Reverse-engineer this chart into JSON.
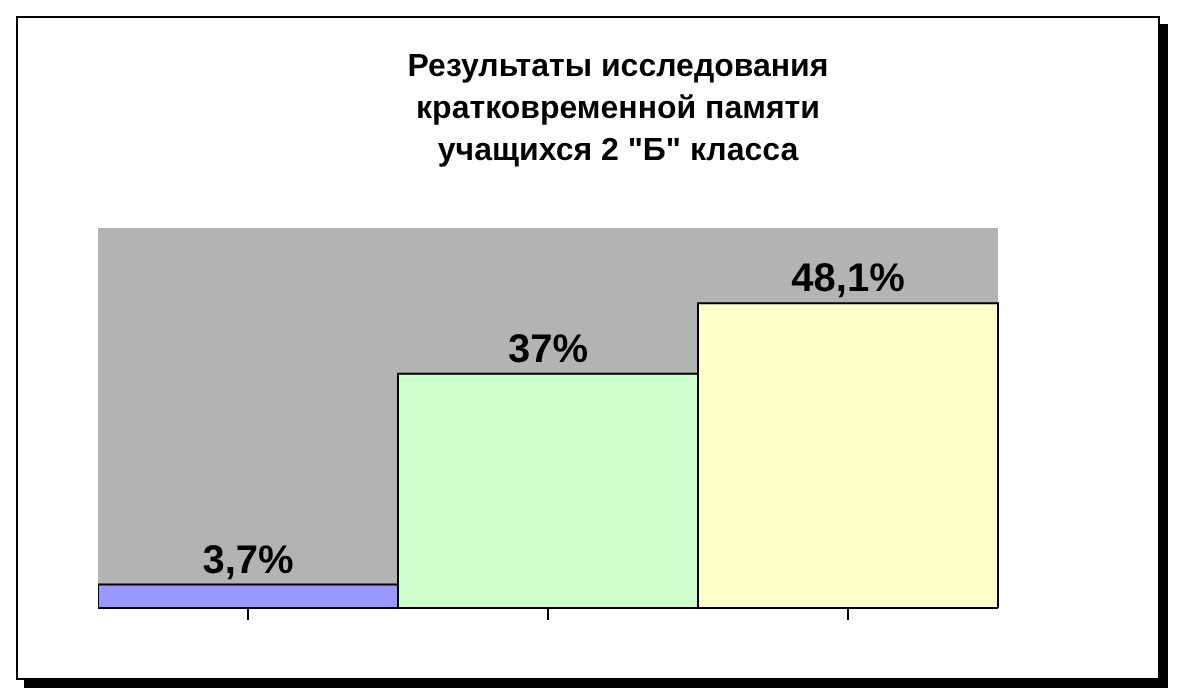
{
  "chart_data": {
    "type": "bar",
    "title": "Результаты исследования кратковременной памяти учащихся 2 \"Б\" класса",
    "categories": [
      null,
      null,
      null
    ],
    "values": [
      3.7,
      37,
      48.1
    ],
    "colors": [
      "#9999ff",
      "#ccffcc",
      "#ffffcc"
    ],
    "value_labels": [
      "3,7%",
      "37%",
      "48,1%"
    ]
  }
}
